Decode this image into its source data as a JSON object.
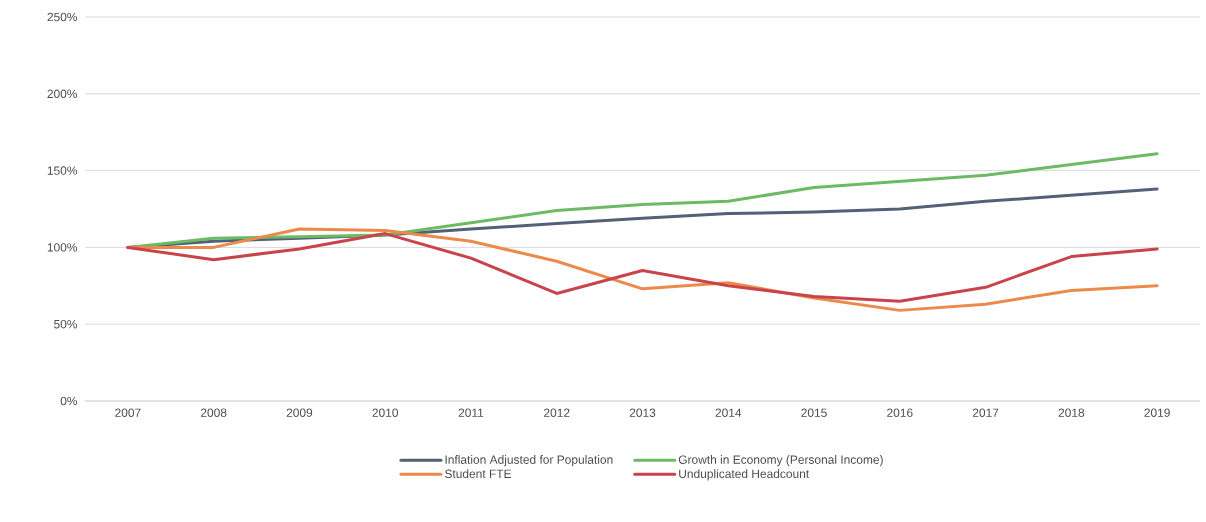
{
  "chart_data": {
    "type": "line",
    "categories": [
      "2007",
      "2008",
      "2009",
      "2010",
      "2011",
      "2012",
      "2013",
      "2014",
      "2015",
      "2016",
      "2017",
      "2018",
      "2019"
    ],
    "series": [
      {
        "name": "Inflation Adjusted for Population",
        "color": "#546078",
        "values": [
          100,
          104,
          106,
          108,
          112,
          115.5,
          119,
          122,
          123,
          125,
          130,
          134,
          138
        ]
      },
      {
        "name": "Growth in Economy (Personal Income)",
        "color": "#6cbb64",
        "values": [
          100,
          106,
          107,
          108,
          116,
          124,
          128,
          130,
          139,
          143,
          147,
          154,
          161
        ]
      },
      {
        "name": "Student FTE",
        "color": "#ec8a4c",
        "values": [
          100,
          100,
          112,
          111,
          104,
          91,
          73,
          77,
          67,
          59,
          63,
          72,
          75
        ]
      },
      {
        "name": "Unduplicated Headcount",
        "color": "#c8444a",
        "values": [
          100,
          92,
          99,
          109,
          93,
          70,
          85,
          75,
          68,
          65,
          74,
          94,
          99
        ]
      }
    ],
    "ylim": [
      0,
      250
    ],
    "yticks": [
      {
        "value": 0,
        "label": "0%"
      },
      {
        "value": 50,
        "label": "50%"
      },
      {
        "value": 100,
        "label": "100%"
      },
      {
        "value": 150,
        "label": "150%"
      },
      {
        "value": 200,
        "label": "200%"
      },
      {
        "value": 250,
        "label": "250%"
      }
    ],
    "grid": "y",
    "legend": "bottom",
    "marker": "none",
    "line_style": "solid"
  }
}
